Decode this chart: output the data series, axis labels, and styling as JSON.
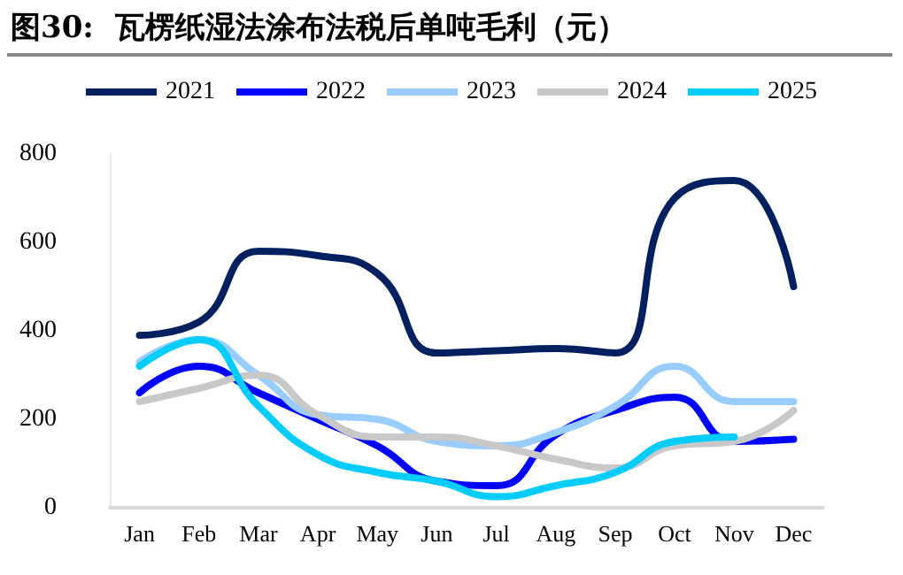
{
  "chart_data": {
    "type": "line",
    "title": "图30:  瓦楞纸湿法涂布法税后单吨毛利（元）",
    "categories": [
      "Jan",
      "Feb",
      "Mar",
      "Apr",
      "May",
      "Jun",
      "Jul",
      "Aug",
      "Sep",
      "Oct",
      "Nov",
      "Dec"
    ],
    "series": [
      {
        "name": "2021",
        "color": "#002060",
        "values": [
          390,
          420,
          580,
          570,
          530,
          350,
          355,
          360,
          350,
          700,
          740,
          500
        ]
      },
      {
        "name": "2022",
        "color": "#0000ff",
        "values": [
          260,
          320,
          260,
          200,
          140,
          60,
          50,
          165,
          220,
          250,
          150,
          155
        ]
      },
      {
        "name": "2023",
        "color": "#99ccff",
        "values": [
          330,
          380,
          300,
          210,
          200,
          150,
          140,
          170,
          230,
          320,
          240,
          240
        ]
      },
      {
        "name": "2024",
        "color": "#c8c8c8",
        "values": [
          240,
          270,
          300,
          210,
          160,
          160,
          140,
          110,
          90,
          140,
          150,
          220
        ]
      },
      {
        "name": "2025",
        "color": "#00ccff",
        "values": [
          320,
          380,
          230,
          120,
          80,
          60,
          25,
          50,
          80,
          150,
          160,
          null
        ]
      }
    ],
    "ylim": [
      0,
      800
    ],
    "yticks": [
      0,
      200,
      400,
      600,
      800
    ],
    "grid": false,
    "legend": "top",
    "marker": "none",
    "line_style": "solid"
  }
}
